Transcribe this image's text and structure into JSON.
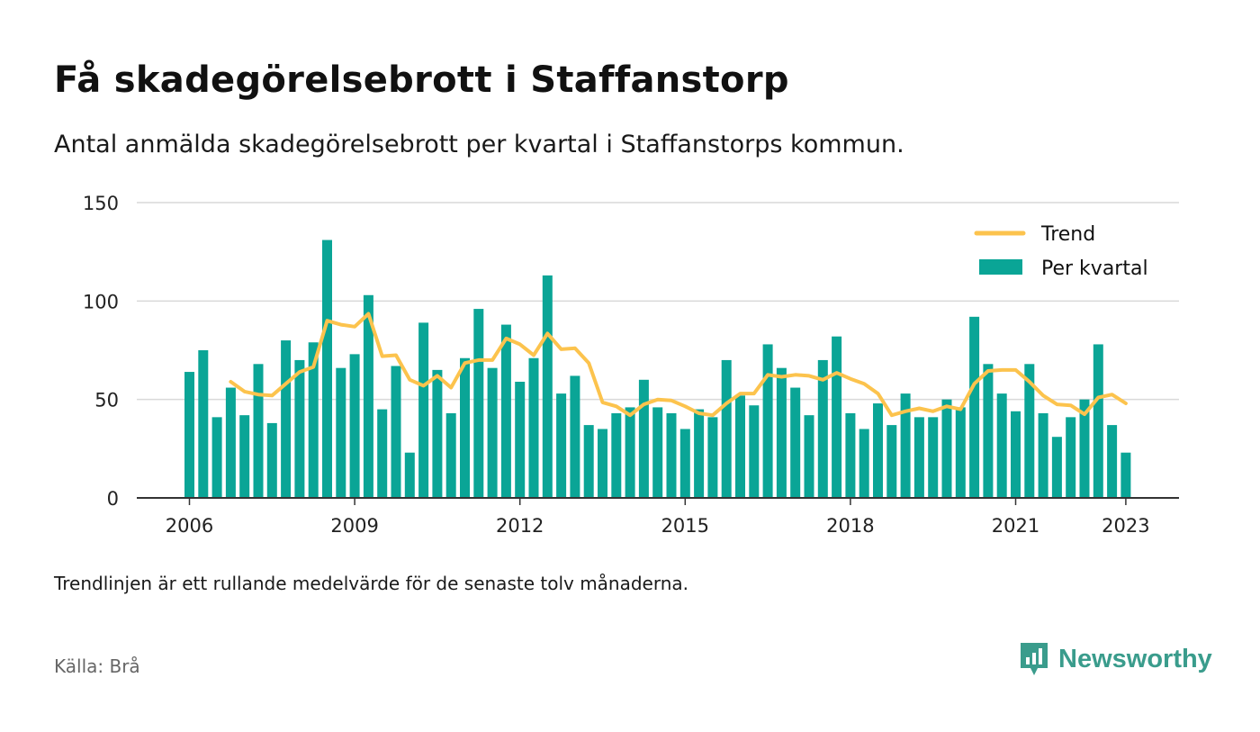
{
  "title": "Få skadegörelsebrott i Staffanstorp",
  "subtitle": "Antal anmälda skadegörelsebrott per kvartal i Staffanstorps kommun.",
  "note": "Trendlinjen är ett rullande medelvärde för de senaste tolv månaderna.",
  "source": "Källa: Brå",
  "brand": {
    "name": "Newsworthy",
    "icon": "newsworthy-logo-icon",
    "color": "#3a9c8c"
  },
  "chart_data": {
    "type": "bar",
    "ylim": [
      0,
      150
    ],
    "yticks": [
      "0",
      "50",
      "100",
      "150"
    ],
    "xticks": [
      {
        "label": "2006",
        "year": 2006
      },
      {
        "label": "2009",
        "year": 2009
      },
      {
        "label": "2012",
        "year": 2012
      },
      {
        "label": "2015",
        "year": 2015
      },
      {
        "label": "2018",
        "year": 2018
      },
      {
        "label": "2021",
        "year": 2021
      },
      {
        "label": "2023",
        "year": 2023
      }
    ],
    "grid": true,
    "legend_position": "top-right",
    "colors": {
      "bars": "#0aa596",
      "trend": "#fcc34d",
      "grid": "#d9d9d9",
      "axis": "#333333"
    },
    "series": [
      {
        "name": "Per kvartal",
        "type": "bar",
        "start": {
          "year": 2006,
          "quarter": 1
        },
        "values": [
          64,
          75,
          41,
          56,
          42,
          68,
          38,
          80,
          70,
          79,
          131,
          66,
          73,
          103,
          45,
          67,
          23,
          89,
          65,
          43,
          71,
          96,
          66,
          88,
          59,
          71,
          113,
          53,
          62,
          37,
          35,
          43,
          46,
          60,
          46,
          43,
          35,
          45,
          41,
          70,
          52,
          47,
          78,
          66,
          56,
          42,
          70,
          82,
          43,
          35,
          48,
          37,
          53,
          41,
          41,
          50,
          46,
          92,
          68,
          53,
          44,
          68,
          43,
          31,
          41,
          50,
          78,
          37,
          23
        ]
      },
      {
        "name": "Trend",
        "type": "line",
        "start": {
          "year": 2006,
          "quarter": 4
        },
        "values": [
          59.0,
          54.0,
          52.5,
          52.0,
          58.0,
          64.0,
          66.5,
          90.0,
          88.0,
          87.0,
          93.5,
          72.0,
          72.5,
          60.0,
          57.0,
          62.0,
          56.0,
          68.5,
          70.0,
          70.0,
          81.0,
          78.0,
          72.5,
          83.5,
          75.5,
          76.0,
          68.5,
          48.5,
          46.5,
          42.0,
          47.5,
          50.0,
          49.5,
          46.5,
          43.0,
          42.0,
          48.0,
          53.0,
          53.0,
          62.5,
          61.5,
          62.5,
          62.0,
          60.0,
          63.5,
          60.5,
          58.0,
          53.0,
          42.0,
          44.0,
          45.5,
          44.0,
          46.5,
          45.0,
          58.0,
          64.5,
          65.0,
          65.0,
          59.0,
          52.0,
          47.5,
          47.0,
          42.5,
          51.0,
          52.5,
          48.0
        ]
      }
    ]
  }
}
